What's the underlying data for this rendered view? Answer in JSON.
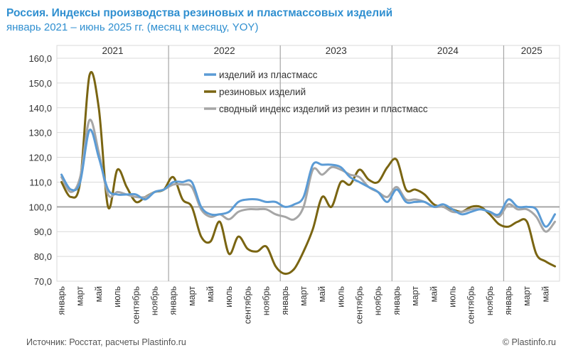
{
  "header": {
    "title": "Россия. Индексы производства резиновых и пластмассовых изделий",
    "subtitle": "январь 2021 – июнь 2025 гг. (месяц к месяцу, YOY)"
  },
  "footer": {
    "source": "Источник: Росстат, расчеты  Plastinfo.ru",
    "copyright": "© Plastinfo.ru"
  },
  "colors": {
    "plastic": "#5b9bd5",
    "rubber": "#7a6512",
    "combined": "#a6a6a6",
    "grid": "#d9d9d9",
    "baseline": "#a6a6a6"
  },
  "chart_data": {
    "type": "line",
    "title": "Россия. Индексы производства резиновых и пластмассовых изделий",
    "ylim": [
      70,
      160
    ],
    "yticks": [
      "70,0",
      "80,0",
      "90,0",
      "100,0",
      "110,0",
      "120,0",
      "130,0",
      "140,0",
      "150,0",
      "160,0"
    ],
    "ytick_values": [
      70,
      80,
      90,
      100,
      110,
      120,
      130,
      140,
      150,
      160
    ],
    "reference_line": 100,
    "years": [
      "2021",
      "2022",
      "2023",
      "2024",
      "2025"
    ],
    "year_lengths": [
      12,
      12,
      12,
      12,
      6
    ],
    "x_labels": [
      "январь",
      "",
      "март",
      "",
      "май",
      "",
      "июль",
      "",
      "сентябрь",
      "",
      "ноябрь",
      "",
      "январь",
      "",
      "март",
      "",
      "май",
      "",
      "июль",
      "",
      "сентябрь",
      "",
      "ноябрь",
      "",
      "январь",
      "",
      "март",
      "",
      "май",
      "",
      "июль",
      "",
      "сентябрь",
      "",
      "ноябрь",
      "",
      "январь",
      "",
      "март",
      "",
      "май",
      "",
      "июль",
      "",
      "сентябрь",
      "",
      "ноябрь",
      "",
      "январь",
      "",
      "март",
      "",
      "май",
      ""
    ],
    "series": [
      {
        "name": "изделий из пластмасс",
        "key": "plastic",
        "values": [
          113,
          107,
          110,
          131,
          120,
          107,
          105,
          105,
          105,
          103,
          106,
          107,
          110,
          110,
          110,
          100,
          97,
          97,
          98,
          102,
          103,
          103,
          102,
          102,
          100,
          101,
          104,
          117,
          117,
          117,
          116,
          112,
          110,
          108,
          106,
          102,
          107,
          102,
          102,
          102,
          100,
          101,
          99,
          97,
          98,
          99,
          98,
          97,
          103,
          100,
          100,
          99,
          92,
          97
        ]
      },
      {
        "name": "резиновых изделий",
        "key": "rubber",
        "values": [
          110,
          104,
          110,
          153,
          140,
          100,
          115,
          108,
          102,
          104,
          106,
          107,
          112,
          103,
          100,
          88,
          86,
          94,
          81,
          88,
          83,
          82,
          84,
          76,
          73,
          75,
          82,
          91,
          104,
          100,
          110,
          109,
          115,
          111,
          110,
          116,
          119,
          107,
          107,
          105,
          101,
          100,
          99,
          98,
          100,
          100,
          97,
          93,
          92,
          94,
          94,
          81,
          78,
          76
        ]
      },
      {
        "name": "сводный индекс изделий из резин и пластмасс",
        "key": "combined",
        "values": [
          112,
          106,
          112,
          135,
          122,
          105,
          106,
          105,
          104,
          104,
          106,
          107,
          109,
          109,
          108,
          99,
          96,
          97,
          95,
          98,
          99,
          99,
          99,
          97,
          96,
          95,
          100,
          115,
          113,
          116,
          115,
          113,
          112,
          108,
          106,
          104,
          108,
          103,
          103,
          102,
          100,
          100,
          98,
          98,
          99,
          99,
          98,
          96,
          101,
          99,
          99,
          96,
          90,
          94
        ]
      }
    ],
    "legend_position": "top-center",
    "grid": true
  }
}
